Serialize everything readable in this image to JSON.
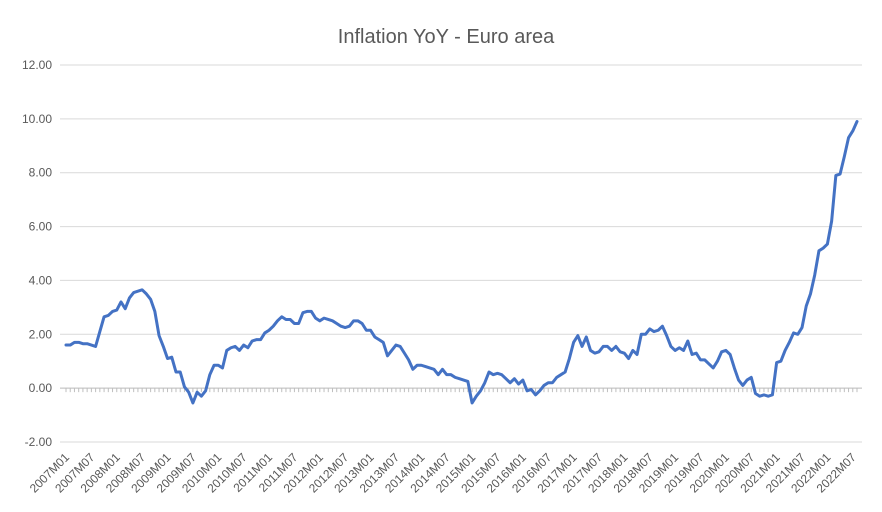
{
  "chart_data": {
    "type": "line",
    "title": "Inflation YoY - Euro area",
    "categories": [
      "2007M01",
      null,
      null,
      null,
      null,
      null,
      "2007M07",
      null,
      null,
      null,
      null,
      null,
      "2008M01",
      null,
      null,
      null,
      null,
      null,
      "2008M07",
      null,
      null,
      null,
      null,
      null,
      "2009M01",
      null,
      null,
      null,
      null,
      null,
      "2009M07",
      null,
      null,
      null,
      null,
      null,
      "2010M01",
      null,
      null,
      null,
      null,
      null,
      "2010M07",
      null,
      null,
      null,
      null,
      null,
      "2011M01",
      null,
      null,
      null,
      null,
      null,
      "2011M07",
      null,
      null,
      null,
      null,
      null,
      "2012M01",
      null,
      null,
      null,
      null,
      null,
      "2012M07",
      null,
      null,
      null,
      null,
      null,
      "2013M01",
      null,
      null,
      null,
      null,
      null,
      "2013M07",
      null,
      null,
      null,
      null,
      null,
      "2014M01",
      null,
      null,
      null,
      null,
      null,
      "2014M07",
      null,
      null,
      null,
      null,
      null,
      "2015M01",
      null,
      null,
      null,
      null,
      null,
      "2015M07",
      null,
      null,
      null,
      null,
      null,
      "2016M01",
      null,
      null,
      null,
      null,
      null,
      "2016M07",
      null,
      null,
      null,
      null,
      null,
      "2017M01",
      null,
      null,
      null,
      null,
      null,
      "2017M07",
      null,
      null,
      null,
      null,
      null,
      "2018M01",
      null,
      null,
      null,
      null,
      null,
      "2018M07",
      null,
      null,
      null,
      null,
      null,
      "2019M01",
      null,
      null,
      null,
      null,
      null,
      "2019M07",
      null,
      null,
      null,
      null,
      null,
      "2020M01",
      null,
      null,
      null,
      null,
      null,
      "2020M07",
      null,
      null,
      null,
      null,
      null,
      "2021M01",
      null,
      null,
      null,
      null,
      null,
      "2021M07",
      null,
      null,
      null,
      null,
      null,
      "2022M01",
      null,
      null,
      null,
      null,
      null,
      "2022M07",
      null
    ],
    "values": [
      1.6,
      1.6,
      1.7,
      1.7,
      1.65,
      1.65,
      1.6,
      1.55,
      2.1,
      2.65,
      2.7,
      2.85,
      2.9,
      3.2,
      2.95,
      3.35,
      3.55,
      3.6,
      3.65,
      3.5,
      3.3,
      2.85,
      1.95,
      1.55,
      1.1,
      1.15,
      0.6,
      0.6,
      0.05,
      -0.15,
      -0.55,
      -0.15,
      -0.3,
      -0.1,
      0.5,
      0.85,
      0.85,
      0.75,
      1.4,
      1.5,
      1.55,
      1.4,
      1.6,
      1.5,
      1.75,
      1.8,
      1.8,
      2.05,
      2.15,
      2.3,
      2.5,
      2.65,
      2.55,
      2.55,
      2.4,
      2.4,
      2.8,
      2.85,
      2.85,
      2.6,
      2.5,
      2.6,
      2.55,
      2.5,
      2.4,
      2.3,
      2.25,
      2.3,
      2.5,
      2.5,
      2.4,
      2.15,
      2.15,
      1.9,
      1.8,
      1.7,
      1.2,
      1.4,
      1.6,
      1.55,
      1.3,
      1.05,
      0.7,
      0.85,
      0.85,
      0.8,
      0.75,
      0.7,
      0.5,
      0.7,
      0.5,
      0.5,
      0.4,
      0.35,
      0.3,
      0.25,
      -0.55,
      -0.3,
      -0.1,
      0.2,
      0.6,
      0.5,
      0.55,
      0.5,
      0.35,
      0.2,
      0.35,
      0.15,
      0.3,
      -0.1,
      -0.05,
      -0.25,
      -0.1,
      0.1,
      0.2,
      0.2,
      0.4,
      0.5,
      0.6,
      1.1,
      1.7,
      1.95,
      1.55,
      1.9,
      1.4,
      1.3,
      1.35,
      1.55,
      1.55,
      1.4,
      1.55,
      1.35,
      1.3,
      1.1,
      1.4,
      1.25,
      2.0,
      2.0,
      2.2,
      2.1,
      2.15,
      2.3,
      1.95,
      1.55,
      1.4,
      1.5,
      1.4,
      1.75,
      1.25,
      1.3,
      1.05,
      1.05,
      0.9,
      0.75,
      1.0,
      1.35,
      1.4,
      1.25,
      0.75,
      0.3,
      0.1,
      0.3,
      0.4,
      -0.2,
      -0.3,
      -0.25,
      -0.3,
      -0.25,
      0.95,
      1.0,
      1.4,
      1.7,
      2.05,
      2.0,
      2.25,
      3.05,
      3.5,
      4.2,
      5.1,
      5.2,
      5.35,
      6.2,
      7.9,
      7.95,
      8.6,
      9.3,
      9.55,
      9.9
    ],
    "color": "#4472c4",
    "ylim": [
      -2,
      12
    ],
    "yticks": [
      {
        "value": -2,
        "label": "-2.00"
      },
      {
        "value": 0,
        "label": "0.00"
      },
      {
        "value": 2,
        "label": "2.00"
      },
      {
        "value": 4,
        "label": "4.00"
      },
      {
        "value": 6,
        "label": "6.00"
      },
      {
        "value": 8,
        "label": "8.00"
      },
      {
        "value": 10,
        "label": "10.00"
      },
      {
        "value": 12,
        "label": "12.00"
      }
    ],
    "grid": true
  }
}
